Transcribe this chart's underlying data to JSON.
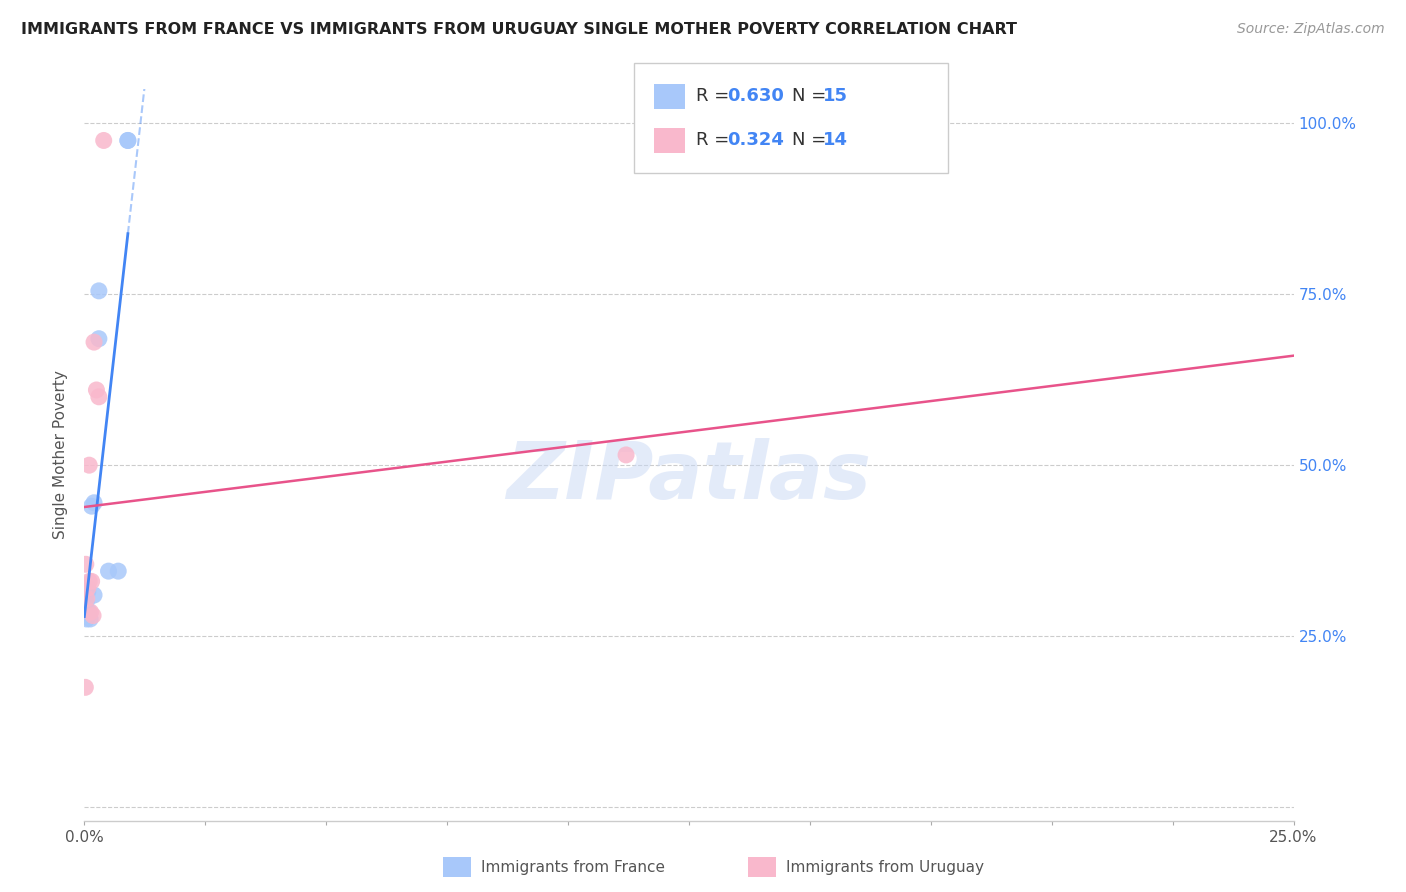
{
  "title": "IMMIGRANTS FROM FRANCE VS IMMIGRANTS FROM URUGUAY SINGLE MOTHER POVERTY CORRELATION CHART",
  "source": "Source: ZipAtlas.com",
  "ylabel": "Single Mother Poverty",
  "legend_r1": "R = 0.630",
  "legend_n1": "N = 15",
  "legend_r2": "R = 0.324",
  "legend_n2": "N = 14",
  "legend_label1": "Immigrants from France",
  "legend_label2": "Immigrants from Uruguay",
  "color_france": "#a8c8fa",
  "color_uruguay": "#f9b8cc",
  "color_france_line": "#4285f4",
  "color_uruguay_line": "#e8538a",
  "watermark": "ZIPatlas",
  "france_x": [
    0.0002,
    0.0004,
    0.0005,
    0.0007,
    0.001,
    0.0012,
    0.0015,
    0.002,
    0.002,
    0.003,
    0.003,
    0.005,
    0.007,
    0.009,
    0.009
  ],
  "france_y": [
    0.285,
    0.3,
    0.275,
    0.315,
    0.285,
    0.275,
    0.44,
    0.445,
    0.31,
    0.755,
    0.685,
    0.345,
    0.345,
    0.975,
    0.975
  ],
  "uruguay_x": [
    0.0002,
    0.0003,
    0.0005,
    0.0007,
    0.001,
    0.001,
    0.0013,
    0.0015,
    0.0018,
    0.002,
    0.0025,
    0.003,
    0.004,
    0.112
  ],
  "uruguay_y": [
    0.175,
    0.355,
    0.305,
    0.32,
    0.33,
    0.5,
    0.285,
    0.33,
    0.28,
    0.68,
    0.61,
    0.6,
    0.975,
    0.515
  ],
  "xlim": [
    0.0,
    0.25
  ],
  "ylim": [
    -0.02,
    1.05
  ],
  "x_ticks": [
    0.0,
    0.025,
    0.05,
    0.075,
    0.1,
    0.125,
    0.15,
    0.175,
    0.2,
    0.225,
    0.25
  ],
  "x_tick_labels": [
    "0.0%",
    "",
    "",
    "",
    "",
    "",
    "",
    "",
    "",
    "",
    "25.0%"
  ],
  "y_ticks": [
    0.0,
    0.25,
    0.5,
    0.75,
    1.0
  ],
  "y_tick_labels_right": [
    "",
    "25.0%",
    "50.0%",
    "75.0%",
    "100.0%"
  ]
}
